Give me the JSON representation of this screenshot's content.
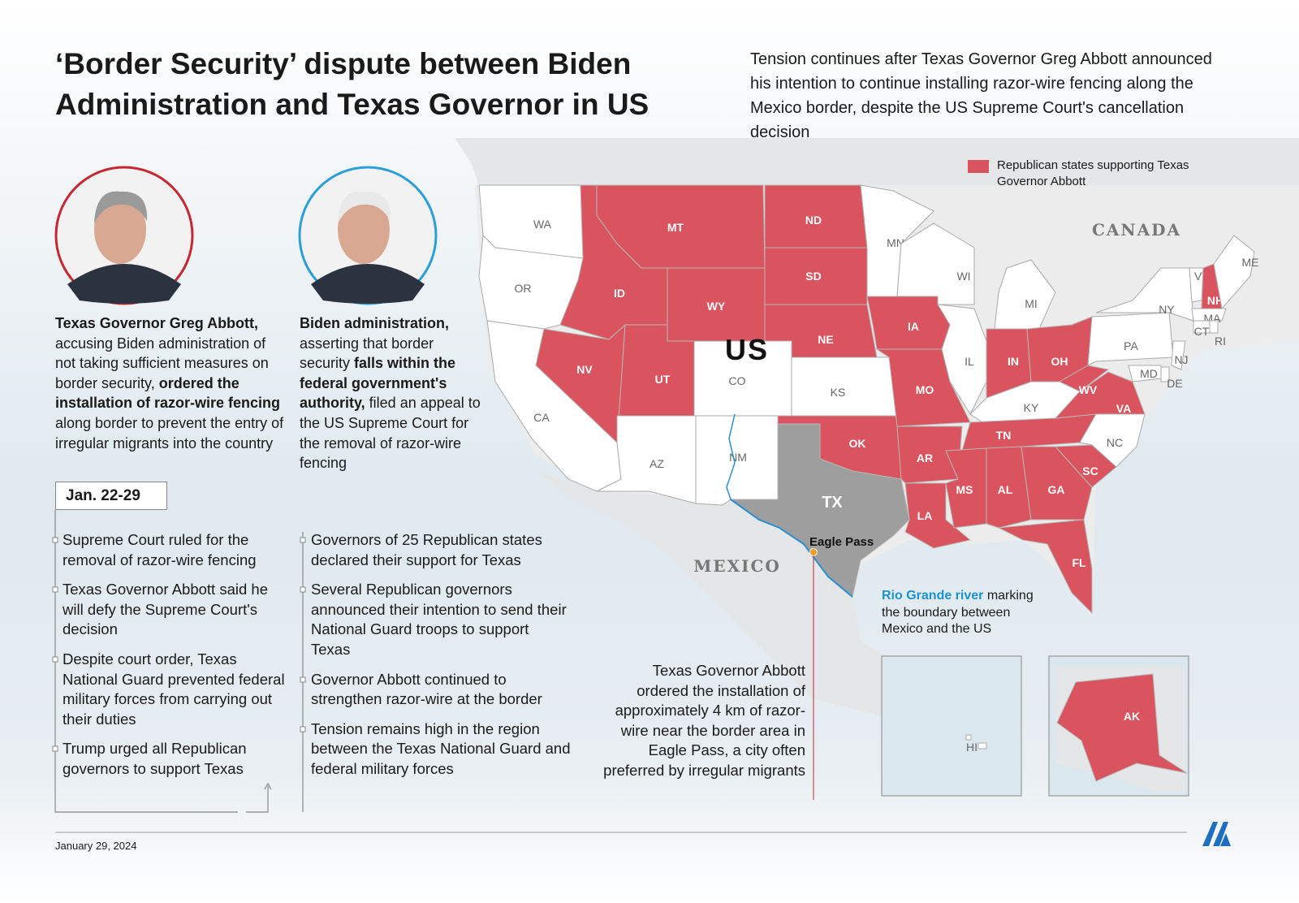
{
  "header": {
    "title": "‘Border Security’ dispute between Biden Administration and Texas Governor in US",
    "summary": "Tension continues after Texas Governor Greg Abbott announced his intention to continue installing razor-wire fencing along the Mexico border, despite the US Supreme Court's cancellation decision"
  },
  "legend": {
    "label": "Republican states supporting Texas Governor Abbott",
    "color": "#d9545e"
  },
  "profiles": [
    {
      "ring": "#c62832",
      "text": [
        {
          "text": "Texas Governor Greg Abbott,",
          "bold": true
        },
        {
          "text": " accusing Biden administration of not taking sufficient measures on border security, "
        },
        {
          "text": "ordered the installation of razor-wire fencing",
          "bold": true
        },
        {
          "text": " along border to prevent the entry of irregular migrants into the country"
        }
      ]
    },
    {
      "ring": "#2a9fd8",
      "text": [
        {
          "text": "Biden administration,",
          "bold": true
        },
        {
          "text": " asserting that border security "
        },
        {
          "text": "falls within the federal government's authority,",
          "bold": true
        },
        {
          "text": " filed an appeal to the US Supreme Court for the removal of razor-wire fencing"
        }
      ]
    }
  ],
  "timeline": {
    "date": "Jan. 22-29",
    "left_events": [
      "Supreme Court ruled for the removal of razor-wire fencing",
      "Texas Governor Abbott said he will defy the Supreme Court's decision",
      "Despite court order, Texas National Guard prevented federal military forces from carrying out their duties",
      "Trump urged all Republican governors to support Texas"
    ],
    "right_events": [
      "Governors of 25 Republican states declared their support for Texas",
      "Several Republican governors announced their intention to send their National Guard troops to support Texas",
      "Governor Abbott continued to strengthen razor-wire at the border",
      "Tension remains high in the region between the Texas National Guard and federal military forces"
    ]
  },
  "map": {
    "country_labels": [
      "US",
      "CANADA",
      "MEXICO"
    ],
    "states": [
      {
        "label": "WA",
        "supporting": false
      },
      {
        "label": "OR",
        "supporting": false
      },
      {
        "label": "CA",
        "supporting": false
      },
      {
        "label": "NV",
        "supporting": true
      },
      {
        "label": "ID",
        "supporting": true
      },
      {
        "label": "MT",
        "supporting": true
      },
      {
        "label": "WY",
        "supporting": true
      },
      {
        "label": "UT",
        "supporting": true
      },
      {
        "label": "CO",
        "supporting": false
      },
      {
        "label": "AZ",
        "supporting": false
      },
      {
        "label": "NM",
        "supporting": false
      },
      {
        "label": "ND",
        "supporting": true
      },
      {
        "label": "SD",
        "supporting": true
      },
      {
        "label": "NE",
        "supporting": true
      },
      {
        "label": "KS",
        "supporting": false
      },
      {
        "label": "OK",
        "supporting": true
      },
      {
        "label": "TX",
        "supporting": false,
        "highlight": "#9e9e9e"
      },
      {
        "label": "MN",
        "supporting": false
      },
      {
        "label": "IA",
        "supporting": true
      },
      {
        "label": "MO",
        "supporting": true
      },
      {
        "label": "AR",
        "supporting": true
      },
      {
        "label": "LA",
        "supporting": true
      },
      {
        "label": "WI",
        "supporting": false
      },
      {
        "label": "IL",
        "supporting": false
      },
      {
        "label": "MI",
        "supporting": false
      },
      {
        "label": "IN",
        "supporting": true
      },
      {
        "label": "OH",
        "supporting": true
      },
      {
        "label": "KY",
        "supporting": false
      },
      {
        "label": "TN",
        "supporting": true
      },
      {
        "label": "MS",
        "supporting": true
      },
      {
        "label": "AL",
        "supporting": true
      },
      {
        "label": "GA",
        "supporting": true
      },
      {
        "label": "FL",
        "supporting": true
      },
      {
        "label": "SC",
        "supporting": true
      },
      {
        "label": "NC",
        "supporting": false
      },
      {
        "label": "VA",
        "supporting": true
      },
      {
        "label": "WV",
        "supporting": true
      },
      {
        "label": "PA",
        "supporting": false
      },
      {
        "label": "NY",
        "supporting": false
      },
      {
        "label": "VT",
        "supporting": false
      },
      {
        "label": "NH",
        "supporting": true
      },
      {
        "label": "ME",
        "supporting": false
      },
      {
        "label": "MA",
        "supporting": false
      },
      {
        "label": "CT",
        "supporting": false
      },
      {
        "label": "RI",
        "supporting": false
      },
      {
        "label": "NJ",
        "supporting": false
      },
      {
        "label": "DE",
        "supporting": false
      },
      {
        "label": "MD",
        "supporting": false
      },
      {
        "label": "AK",
        "supporting": true
      },
      {
        "label": "HI",
        "supporting": false
      }
    ],
    "eagle_pass": "Eagle Pass",
    "river_note": [
      {
        "text": "Rio Grande river",
        "bold": true,
        "color": "#1b93cf"
      },
      {
        "text": " marking the boundary between Mexico and the US"
      }
    ],
    "abbott_note": "Texas Governor Abbott ordered the installation of approximately 4 km of razor-wire near the border area in Eagle Pass, a city often preferred by irregular migrants"
  },
  "footer": {
    "date": "January 29, 2024"
  }
}
